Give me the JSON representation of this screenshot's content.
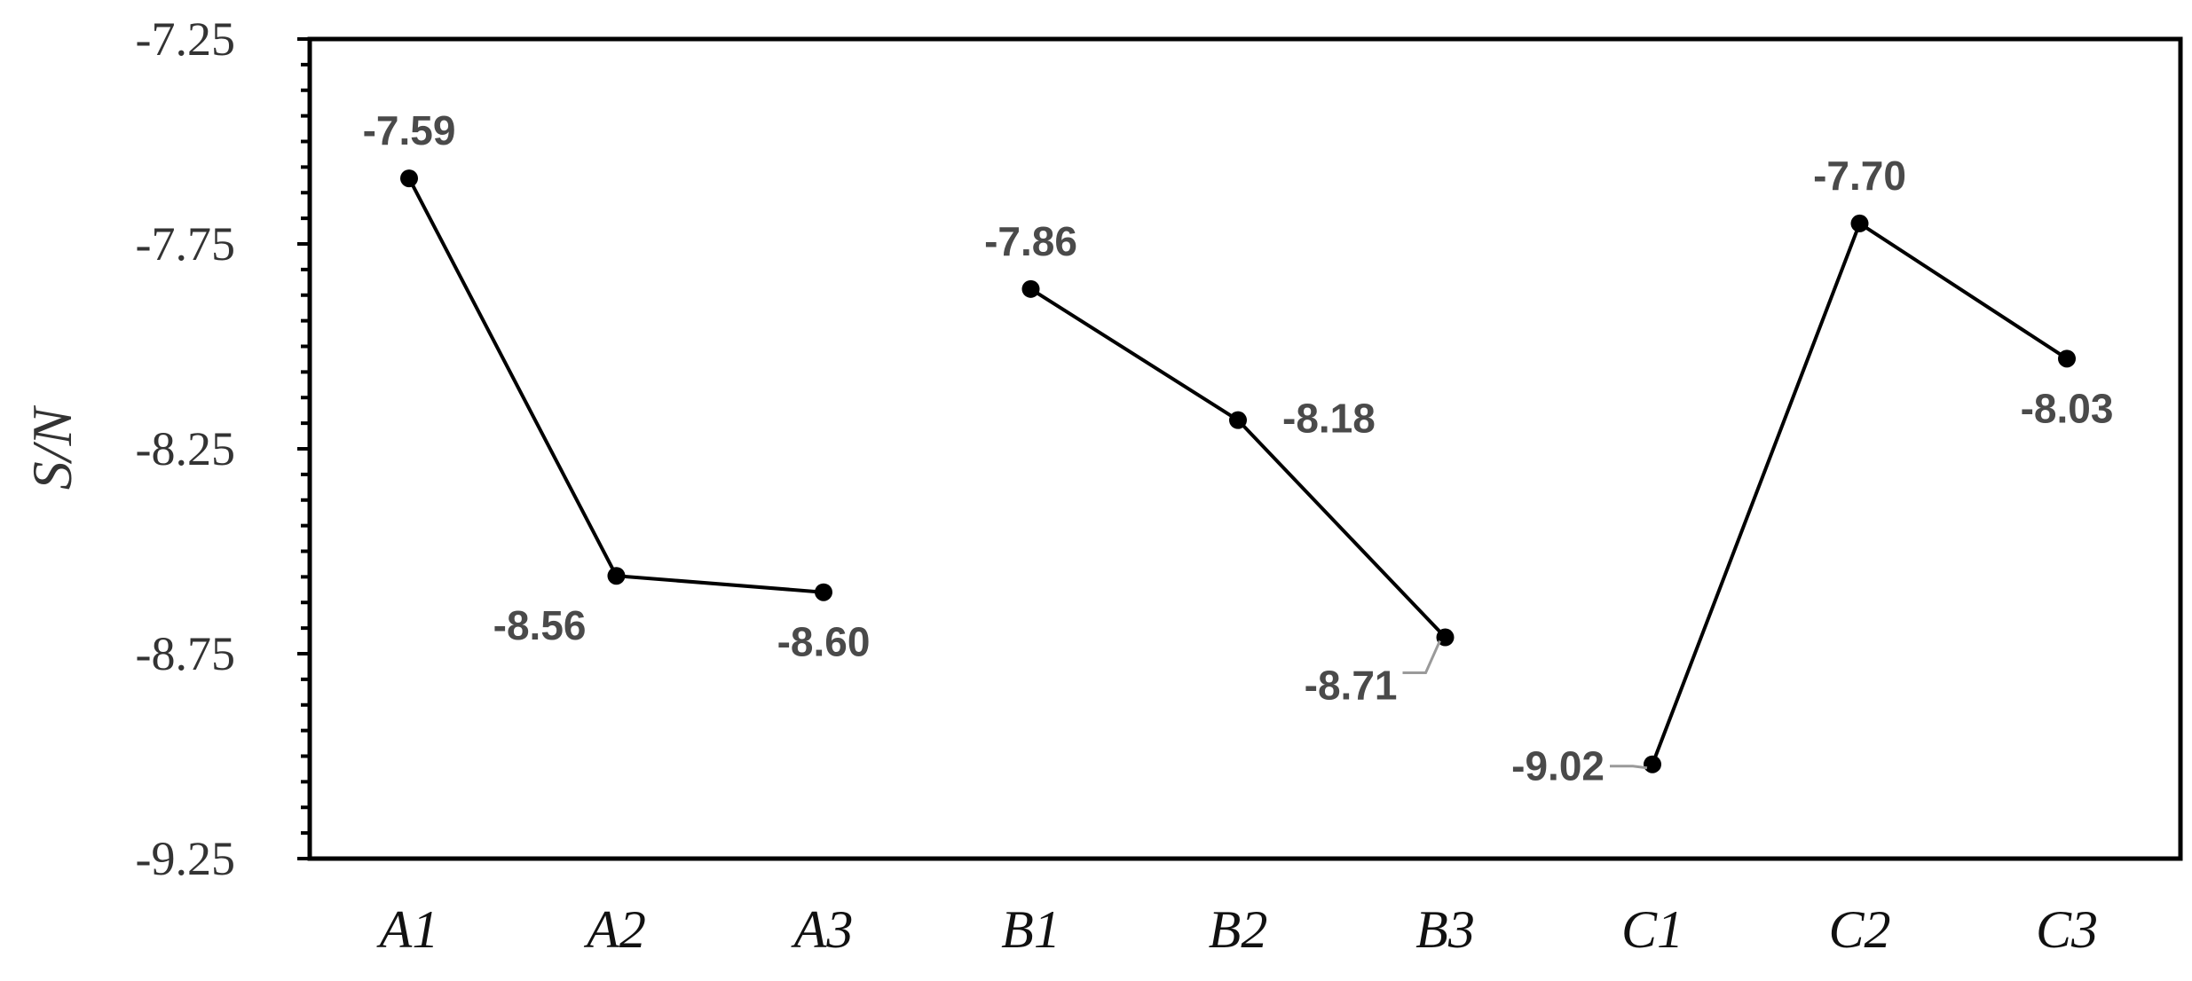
{
  "chart_data": {
    "type": "line",
    "ylabel": "S/N",
    "xlabel": "",
    "ylim": [
      -9.25,
      -7.25
    ],
    "yticks": [
      "-7.25",
      "-7.75",
      "-8.25",
      "-8.75",
      "-9.25"
    ],
    "categories": [
      "A1",
      "A2",
      "A3",
      "B1",
      "B2",
      "B3",
      "C1",
      "C2",
      "C3"
    ],
    "groups": [
      {
        "categories": [
          "A1",
          "A2",
          "A3"
        ],
        "values": [
          -7.59,
          -8.56,
          -8.6
        ],
        "labels": [
          "-7.59",
          "-8.56",
          "-8.60"
        ]
      },
      {
        "categories": [
          "B1",
          "B2",
          "B3"
        ],
        "values": [
          -7.86,
          -8.18,
          -8.71
        ],
        "labels": [
          "-7.86",
          "-8.18",
          "-8.71"
        ]
      },
      {
        "categories": [
          "C1",
          "C2",
          "C3"
        ],
        "values": [
          -9.02,
          -7.7,
          -8.03
        ],
        "labels": [
          "-9.02",
          "-7.70",
          "-8.03"
        ]
      }
    ],
    "grid": false,
    "legend": "none",
    "colors": {
      "line": "#000000",
      "marker": "#000000",
      "frame": "#000000",
      "label": "#4a4a4a"
    }
  }
}
